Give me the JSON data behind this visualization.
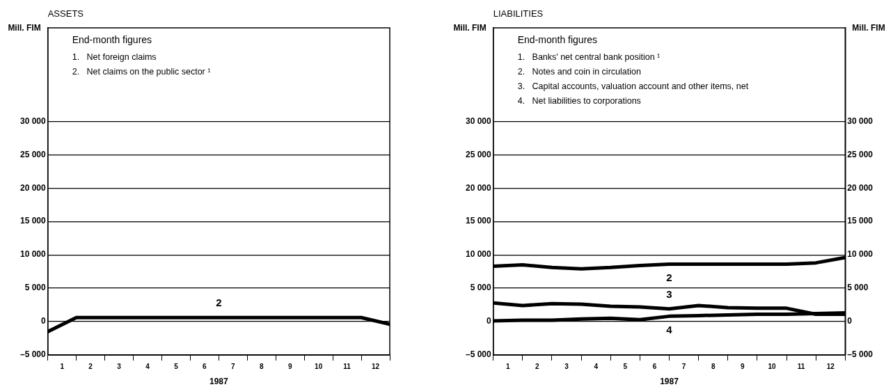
{
  "chart_data": [
    {
      "type": "line",
      "title": "ASSETS",
      "ylabel": "Mill. FIM",
      "xlabel": "1987",
      "x": [
        0,
        1,
        2,
        3,
        4,
        5,
        6,
        7,
        8,
        9,
        10,
        11,
        12
      ],
      "series": [
        {
          "name": "2",
          "color": "#000000",
          "values": [
            -1500,
            600,
            600,
            600,
            600,
            600,
            600,
            600,
            600,
            600,
            600,
            600,
            -400
          ]
        }
      ],
      "xlim": [
        0,
        12
      ],
      "xticks": [
        {
          "value": 0,
          "label": null
        },
        {
          "value": 0.5,
          "label": "1"
        },
        {
          "value": 1,
          "label": null
        },
        {
          "value": 1.5,
          "label": "2"
        },
        {
          "value": 2,
          "label": null
        },
        {
          "value": 2.5,
          "label": "3"
        },
        {
          "value": 3,
          "label": null
        },
        {
          "value": 3.5,
          "label": "4"
        },
        {
          "value": 4,
          "label": null
        },
        {
          "value": 4.5,
          "label": "5"
        },
        {
          "value": 5,
          "label": null
        },
        {
          "value": 5.5,
          "label": "6"
        },
        {
          "value": 6,
          "label": null
        },
        {
          "value": 6.5,
          "label": "7"
        },
        {
          "value": 7,
          "label": null
        },
        {
          "value": 7.5,
          "label": "8"
        },
        {
          "value": 8,
          "label": null
        },
        {
          "value": 8.5,
          "label": "9"
        },
        {
          "value": 9,
          "label": null
        },
        {
          "value": 9.5,
          "label": "10"
        },
        {
          "value": 10,
          "label": null
        },
        {
          "value": 10.5,
          "label": "11"
        },
        {
          "value": 11,
          "label": null
        },
        {
          "value": 11.5,
          "label": "12"
        },
        {
          "value": 12,
          "label": null
        }
      ],
      "ylim": [
        -5000,
        44000
      ],
      "yticks": [
        {
          "value": -5000,
          "label": "–5 000"
        },
        {
          "value": 0,
          "label": "0"
        },
        {
          "value": 5000,
          "label": "5 000"
        },
        {
          "value": 10000,
          "label": "10 000"
        },
        {
          "value": 15000,
          "label": "15 000"
        },
        {
          "value": 20000,
          "label": "20 000"
        },
        {
          "value": 25000,
          "label": "25 000"
        },
        {
          "value": 30000,
          "label": "30 000"
        }
      ],
      "grid": "y",
      "legend": false,
      "marker": "none",
      "line_style": "solid",
      "annotations": [
        "End-month figures",
        "1.   Net foreign claims",
        "2.   Net claims on the public sector ¹"
      ]
    },
    {
      "type": "line",
      "title": "LIABILITIES",
      "ylabel": "Mill. FIM",
      "y2label": "Mill. FIM",
      "xlabel": "1987",
      "x": [
        0,
        1,
        2,
        3,
        4,
        5,
        6,
        7,
        8,
        9,
        10,
        11,
        12
      ],
      "series": [
        {
          "name": "2",
          "color": "#000000",
          "values": [
            8300,
            8500,
            8100,
            7900,
            8100,
            8400,
            8600,
            8600,
            8600,
            8600,
            8600,
            8800,
            9600
          ]
        },
        {
          "name": "3",
          "color": "#000000",
          "values": [
            2800,
            2400,
            2700,
            2600,
            2300,
            2200,
            1900,
            2400,
            2100,
            2000,
            2000,
            1100,
            1100
          ]
        },
        {
          "name": "4",
          "color": "#000000",
          "values": [
            100,
            200,
            200,
            400,
            500,
            300,
            800,
            900,
            1000,
            1100,
            1100,
            1200,
            1300
          ]
        }
      ],
      "xlim": [
        0,
        12
      ],
      "xticks": [
        {
          "value": 0,
          "label": null
        },
        {
          "value": 0.5,
          "label": "1"
        },
        {
          "value": 1,
          "label": null
        },
        {
          "value": 1.5,
          "label": "2"
        },
        {
          "value": 2,
          "label": null
        },
        {
          "value": 2.5,
          "label": "3"
        },
        {
          "value": 3,
          "label": null
        },
        {
          "value": 3.5,
          "label": "4"
        },
        {
          "value": 4,
          "label": null
        },
        {
          "value": 4.5,
          "label": "5"
        },
        {
          "value": 5,
          "label": null
        },
        {
          "value": 5.5,
          "label": "6"
        },
        {
          "value": 6,
          "label": null
        },
        {
          "value": 6.5,
          "label": "7"
        },
        {
          "value": 7,
          "label": null
        },
        {
          "value": 7.5,
          "label": "8"
        },
        {
          "value": 8,
          "label": null
        },
        {
          "value": 8.5,
          "label": "9"
        },
        {
          "value": 9,
          "label": null
        },
        {
          "value": 9.5,
          "label": "10"
        },
        {
          "value": 10,
          "label": null
        },
        {
          "value": 10.5,
          "label": "11"
        },
        {
          "value": 11,
          "label": null
        },
        {
          "value": 11.5,
          "label": "12"
        },
        {
          "value": 12,
          "label": null
        }
      ],
      "ylim": [
        -5000,
        44000
      ],
      "yticks": [
        {
          "value": -5000,
          "label": "–5 000"
        },
        {
          "value": 0,
          "label": "0"
        },
        {
          "value": 5000,
          "label": "5 000"
        },
        {
          "value": 10000,
          "label": "10 000"
        },
        {
          "value": 15000,
          "label": "15 000"
        },
        {
          "value": 20000,
          "label": "20 000"
        },
        {
          "value": 25000,
          "label": "25 000"
        },
        {
          "value": 30000,
          "label": "30 000"
        }
      ],
      "y2lim": [
        -5000,
        44000
      ],
      "y2ticks": [
        {
          "value": -5000,
          "label": "–5 000"
        },
        {
          "value": 0,
          "label": "0"
        },
        {
          "value": 5000,
          "label": "5 000"
        },
        {
          "value": 10000,
          "label": "10 000"
        },
        {
          "value": 15000,
          "label": "15 000"
        },
        {
          "value": 20000,
          "label": "20 000"
        },
        {
          "value": 25000,
          "label": "25 000"
        },
        {
          "value": 30000,
          "label": "30 000"
        }
      ],
      "grid": "y",
      "legend": false,
      "marker": "none",
      "line_style": "solid",
      "annotations": [
        "End-month figures",
        "1.   Banks' net central bank position ¹",
        "2.   Notes and coin in circulation",
        "3.   Capital accounts, valuation account and other items, net",
        "4.   Net liabilities to corporations"
      ]
    }
  ]
}
